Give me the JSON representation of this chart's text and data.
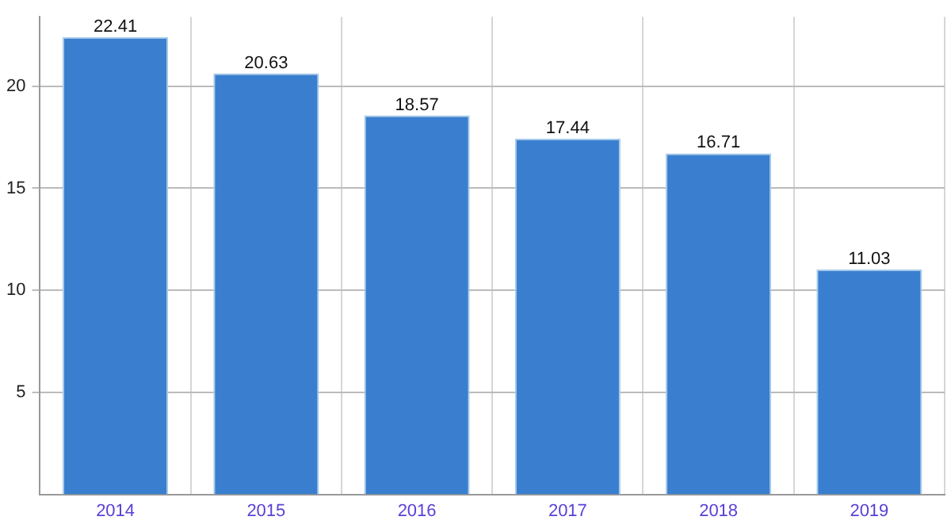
{
  "chart_data": {
    "type": "bar",
    "categories": [
      "2014",
      "2015",
      "2016",
      "2017",
      "2018",
      "2019"
    ],
    "values": [
      22.41,
      20.63,
      18.57,
      17.44,
      16.71,
      11.03
    ],
    "color": "#3a7fcf",
    "ylim": [
      0,
      23.4
    ],
    "yticks": [
      5,
      10,
      15,
      20
    ],
    "grid": true,
    "data_labels": true
  }
}
